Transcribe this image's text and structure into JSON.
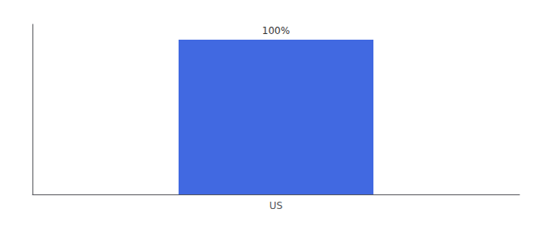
{
  "chart_data": {
    "type": "bar",
    "categories": [
      "US"
    ],
    "values": [
      100
    ],
    "value_labels": [
      "100%"
    ],
    "color": "#4169e1",
    "ylim": [
      0,
      110
    ],
    "data_labels": true,
    "tick_labels": "x",
    "grid": false
  }
}
